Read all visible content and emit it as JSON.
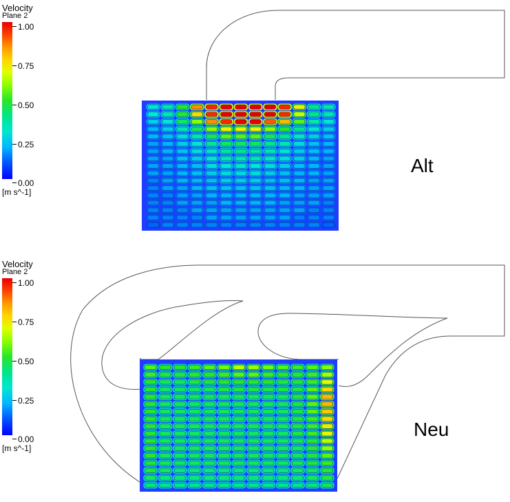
{
  "legends": [
    {
      "title": "Velocity",
      "subtitle": "Plane 2",
      "ticks": [
        "1.00",
        "0.75",
        "0.50",
        "0.25",
        "0.00"
      ],
      "unit": "[m s^-1]"
    },
    {
      "title": "Velocity",
      "subtitle": "Plane 2",
      "ticks": [
        "1.00",
        "0.75",
        "0.50",
        "0.25",
        "0.00"
      ],
      "unit": "[m s^-1]"
    }
  ],
  "cases": [
    {
      "label": "Alt"
    },
    {
      "label": "Neu"
    }
  ],
  "colors": {
    "domain_background": "#1f3cff",
    "obstacle_fill": "#2a6cff",
    "outline": "#333333",
    "high_velocity": "#e60000",
    "mid_velocity": "#28e628"
  },
  "chart_data": [
    {
      "type": "heatmap",
      "name_printed": "Alt",
      "quantity": "Velocity",
      "plane": "Plane 2",
      "unit": "m s^-1",
      "range": [
        0.0,
        1.0
      ],
      "columns": 13,
      "rows": 17,
      "cell_velocity_rows": [
        [
          0.3,
          0.35,
          0.5,
          0.85,
          0.95,
          1.0,
          1.0,
          1.0,
          1.0,
          0.95,
          0.7,
          0.4,
          0.35
        ],
        [
          0.3,
          0.35,
          0.5,
          0.75,
          0.95,
          1.0,
          1.0,
          1.0,
          1.0,
          0.95,
          0.65,
          0.4,
          0.35
        ],
        [
          0.25,
          0.3,
          0.45,
          0.6,
          0.85,
          0.95,
          1.0,
          1.0,
          0.9,
          0.8,
          0.55,
          0.35,
          0.3
        ],
        [
          0.2,
          0.25,
          0.35,
          0.45,
          0.6,
          0.7,
          0.7,
          0.7,
          0.6,
          0.5,
          0.4,
          0.3,
          0.25
        ],
        [
          0.2,
          0.22,
          0.28,
          0.35,
          0.45,
          0.55,
          0.55,
          0.55,
          0.45,
          0.4,
          0.32,
          0.25,
          0.22
        ],
        [
          0.18,
          0.2,
          0.25,
          0.3,
          0.38,
          0.45,
          0.45,
          0.45,
          0.4,
          0.35,
          0.28,
          0.22,
          0.2
        ],
        [
          0.18,
          0.2,
          0.22,
          0.28,
          0.32,
          0.38,
          0.4,
          0.38,
          0.35,
          0.3,
          0.25,
          0.22,
          0.2
        ],
        [
          0.18,
          0.18,
          0.22,
          0.25,
          0.3,
          0.35,
          0.35,
          0.35,
          0.32,
          0.28,
          0.25,
          0.2,
          0.18
        ],
        [
          0.18,
          0.18,
          0.2,
          0.22,
          0.28,
          0.3,
          0.32,
          0.3,
          0.28,
          0.25,
          0.22,
          0.2,
          0.18
        ],
        [
          0.18,
          0.18,
          0.2,
          0.22,
          0.25,
          0.28,
          0.28,
          0.28,
          0.25,
          0.22,
          0.2,
          0.2,
          0.18
        ],
        [
          0.15,
          0.18,
          0.2,
          0.2,
          0.22,
          0.25,
          0.25,
          0.25,
          0.22,
          0.22,
          0.2,
          0.18,
          0.18
        ],
        [
          0.15,
          0.18,
          0.18,
          0.2,
          0.22,
          0.22,
          0.22,
          0.22,
          0.22,
          0.2,
          0.2,
          0.18,
          0.18
        ],
        [
          0.15,
          0.15,
          0.18,
          0.18,
          0.2,
          0.2,
          0.2,
          0.2,
          0.2,
          0.2,
          0.18,
          0.18,
          0.18
        ],
        [
          0.15,
          0.15,
          0.18,
          0.18,
          0.18,
          0.2,
          0.2,
          0.2,
          0.2,
          0.18,
          0.18,
          0.18,
          0.15
        ],
        [
          0.15,
          0.15,
          0.15,
          0.18,
          0.18,
          0.18,
          0.18,
          0.18,
          0.18,
          0.18,
          0.18,
          0.15,
          0.15
        ],
        [
          0.15,
          0.15,
          0.15,
          0.15,
          0.18,
          0.18,
          0.18,
          0.18,
          0.18,
          0.18,
          0.15,
          0.15,
          0.15
        ],
        [
          0.12,
          0.15,
          0.15,
          0.15,
          0.15,
          0.15,
          0.15,
          0.15,
          0.15,
          0.15,
          0.15,
          0.15,
          0.12
        ]
      ]
    },
    {
      "type": "heatmap",
      "name_printed": "Neu",
      "quantity": "Velocity",
      "plane": "Plane 2",
      "unit": "m s^-1",
      "range": [
        0.0,
        1.0
      ],
      "columns": 13,
      "rows": 17,
      "cell_velocity_rows": [
        [
          0.55,
          0.5,
          0.5,
          0.52,
          0.55,
          0.58,
          0.65,
          0.62,
          0.58,
          0.55,
          0.52,
          0.55,
          0.6
        ],
        [
          0.52,
          0.48,
          0.48,
          0.5,
          0.5,
          0.52,
          0.55,
          0.55,
          0.52,
          0.5,
          0.5,
          0.52,
          0.62
        ],
        [
          0.5,
          0.45,
          0.45,
          0.48,
          0.48,
          0.5,
          0.5,
          0.5,
          0.5,
          0.48,
          0.48,
          0.52,
          0.68
        ],
        [
          0.5,
          0.45,
          0.45,
          0.45,
          0.45,
          0.48,
          0.48,
          0.48,
          0.48,
          0.48,
          0.48,
          0.55,
          0.75
        ],
        [
          0.5,
          0.45,
          0.45,
          0.45,
          0.45,
          0.45,
          0.45,
          0.45,
          0.45,
          0.45,
          0.48,
          0.55,
          0.8
        ],
        [
          0.5,
          0.45,
          0.45,
          0.45,
          0.45,
          0.45,
          0.45,
          0.45,
          0.45,
          0.45,
          0.48,
          0.55,
          0.8
        ],
        [
          0.5,
          0.45,
          0.45,
          0.45,
          0.45,
          0.45,
          0.45,
          0.45,
          0.45,
          0.45,
          0.48,
          0.55,
          0.78
        ],
        [
          0.5,
          0.45,
          0.45,
          0.45,
          0.45,
          0.45,
          0.45,
          0.45,
          0.45,
          0.45,
          0.48,
          0.52,
          0.75
        ],
        [
          0.5,
          0.45,
          0.45,
          0.45,
          0.45,
          0.45,
          0.45,
          0.45,
          0.45,
          0.45,
          0.48,
          0.52,
          0.72
        ],
        [
          0.5,
          0.45,
          0.45,
          0.45,
          0.45,
          0.45,
          0.45,
          0.45,
          0.45,
          0.45,
          0.48,
          0.52,
          0.7
        ],
        [
          0.5,
          0.45,
          0.45,
          0.45,
          0.45,
          0.45,
          0.45,
          0.45,
          0.45,
          0.45,
          0.45,
          0.5,
          0.65
        ],
        [
          0.5,
          0.45,
          0.45,
          0.45,
          0.45,
          0.45,
          0.45,
          0.45,
          0.45,
          0.45,
          0.45,
          0.5,
          0.6
        ],
        [
          0.5,
          0.45,
          0.45,
          0.45,
          0.45,
          0.45,
          0.45,
          0.45,
          0.45,
          0.45,
          0.45,
          0.48,
          0.55
        ],
        [
          0.48,
          0.45,
          0.45,
          0.45,
          0.45,
          0.45,
          0.45,
          0.45,
          0.45,
          0.45,
          0.45,
          0.48,
          0.52
        ],
        [
          0.48,
          0.45,
          0.42,
          0.42,
          0.42,
          0.42,
          0.42,
          0.42,
          0.42,
          0.42,
          0.45,
          0.45,
          0.5
        ],
        [
          0.45,
          0.42,
          0.42,
          0.42,
          0.42,
          0.42,
          0.42,
          0.42,
          0.42,
          0.42,
          0.42,
          0.45,
          0.48
        ],
        [
          0.42,
          0.4,
          0.4,
          0.4,
          0.4,
          0.4,
          0.4,
          0.4,
          0.4,
          0.4,
          0.4,
          0.42,
          0.45
        ]
      ]
    }
  ]
}
